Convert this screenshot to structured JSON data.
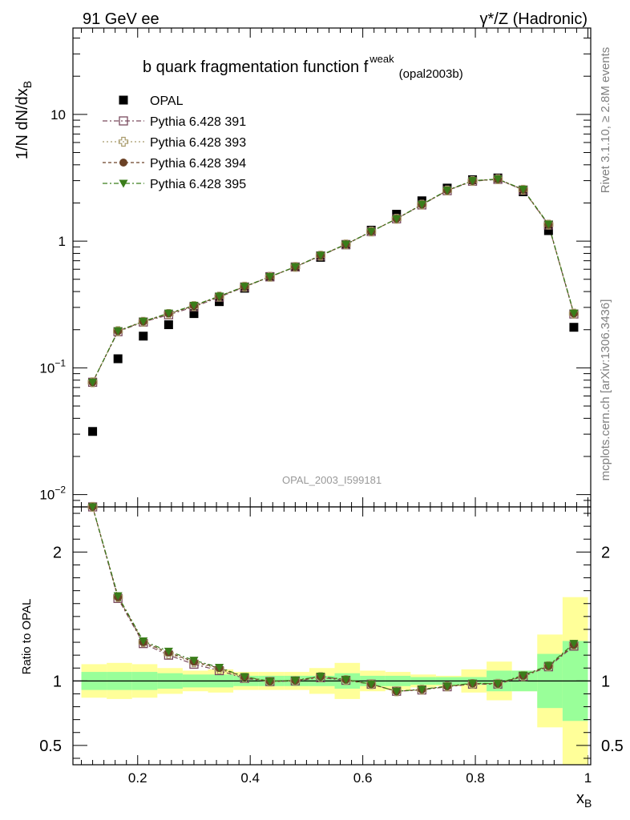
{
  "header": {
    "left": "91 GeV ee",
    "right": "γ*/Z (Hadronic)"
  },
  "side_labels": {
    "rivet": "Rivet 3.1.10, ≥ 2.8M events",
    "mcplots": "mcplots.cern.ch [arXiv:1306.3436]"
  },
  "chart_data": [
    {
      "type": "scatter",
      "title": "b quark fragmentation function f",
      "title_sup": "weak",
      "title_sub": "(opal2003b)",
      "ylabel": "1/N dN/dx",
      "ylabel_sub": "B",
      "watermark": "OPAL_2003_I599181",
      "yscale": "log",
      "xlim": [
        0.085,
        1.005
      ],
      "ylim": [
        0.008,
        48
      ],
      "yticks": [
        {
          "value": 0.01,
          "base": "10",
          "exp": "−2"
        },
        {
          "value": 0.1,
          "base": "10",
          "exp": "−1"
        },
        {
          "value": 1,
          "label": "1"
        },
        {
          "value": 10,
          "label": "10"
        }
      ],
      "x": [
        0.12,
        0.165,
        0.21,
        0.255,
        0.3,
        0.345,
        0.39,
        0.435,
        0.48,
        0.525,
        0.57,
        0.615,
        0.66,
        0.705,
        0.75,
        0.795,
        0.84,
        0.885,
        0.93,
        0.975
      ],
      "series": [
        {
          "name": "OPAL",
          "color": "#000000",
          "marker": "square-filled",
          "values": [
            0.0315,
            0.118,
            0.178,
            0.219,
            0.268,
            0.333,
            0.425,
            0.525,
            0.625,
            0.745,
            0.935,
            1.22,
            1.63,
            2.08,
            2.62,
            3.05,
            3.15,
            2.45,
            1.21,
            0.209
          ]
        },
        {
          "name": "Pythia 6.428 391",
          "color": "#7a4a5e",
          "marker": "square-open",
          "dash": "6,3,2,3",
          "values": [
            0.077,
            0.193,
            0.23,
            0.262,
            0.303,
            0.361,
            0.435,
            0.522,
            0.625,
            0.765,
            0.94,
            1.19,
            1.5,
            1.93,
            2.5,
            2.97,
            3.07,
            2.53,
            1.34,
            0.266
          ]
        },
        {
          "name": "Pythia 6.428 393",
          "color": "#a89a6a",
          "marker": "cross-open",
          "dash": "2,3",
          "values": [
            0.077,
            0.195,
            0.231,
            0.266,
            0.307,
            0.365,
            0.437,
            0.523,
            0.626,
            0.768,
            0.942,
            1.19,
            1.5,
            1.94,
            2.51,
            2.98,
            3.08,
            2.54,
            1.35,
            0.268
          ]
        },
        {
          "name": "Pythia 6.428 394",
          "color": "#6b4226",
          "marker": "circle-filled",
          "dash": "4,3",
          "values": [
            0.077,
            0.195,
            0.232,
            0.268,
            0.309,
            0.367,
            0.438,
            0.523,
            0.627,
            0.77,
            0.944,
            1.19,
            1.5,
            1.94,
            2.51,
            2.99,
            3.08,
            2.55,
            1.35,
            0.268
          ]
        },
        {
          "name": "Pythia 6.428 395",
          "color": "#3a7d1a",
          "marker": "triangle-down-filled",
          "dash": "6,3,2,3",
          "values": [
            0.077,
            0.196,
            0.233,
            0.27,
            0.311,
            0.368,
            0.439,
            0.524,
            0.628,
            0.772,
            0.945,
            1.19,
            1.5,
            1.95,
            2.52,
            3.0,
            3.09,
            2.56,
            1.36,
            0.27
          ]
        }
      ]
    },
    {
      "type": "line",
      "ylabel": "Ratio to OPAL",
      "xlabel": "x",
      "xlabel_sub": "B",
      "xlim": [
        0.085,
        1.005
      ],
      "ylim": [
        0.35,
        2.35
      ],
      "xticks": [
        0.2,
        0.4,
        0.6,
        0.8,
        1
      ],
      "xticklabels": [
        "0.2",
        "0.4",
        "0.6",
        "0.8",
        "1"
      ],
      "yticks": [
        0.5,
        1,
        2
      ],
      "yticklabels": [
        "0.5",
        "1",
        "2"
      ],
      "bin_edges": [
        0.1,
        0.145,
        0.19,
        0.235,
        0.28,
        0.325,
        0.37,
        0.415,
        0.46,
        0.505,
        0.55,
        0.595,
        0.64,
        0.685,
        0.73,
        0.775,
        0.82,
        0.865,
        0.91,
        0.955,
        1.0
      ],
      "band_stat_low": [
        0.93,
        0.93,
        0.93,
        0.94,
        0.95,
        0.95,
        0.96,
        0.96,
        0.96,
        0.96,
        0.94,
        0.96,
        0.96,
        0.97,
        0.97,
        0.97,
        0.92,
        0.92,
        0.79,
        0.69
      ],
      "band_stat_high": [
        1.07,
        1.07,
        1.07,
        1.06,
        1.05,
        1.05,
        1.04,
        1.04,
        1.04,
        1.04,
        1.06,
        1.04,
        1.04,
        1.03,
        1.03,
        1.03,
        1.08,
        1.08,
        1.21,
        1.31
      ],
      "band_total_low": [
        0.87,
        0.86,
        0.87,
        0.9,
        0.92,
        0.91,
        0.93,
        0.93,
        0.93,
        0.9,
        0.86,
        0.92,
        0.93,
        0.95,
        0.96,
        0.91,
        0.85,
        0.92,
        0.64,
        0.35
      ],
      "band_total_high": [
        1.13,
        1.14,
        1.13,
        1.1,
        1.08,
        1.09,
        1.07,
        1.07,
        1.07,
        1.1,
        1.14,
        1.08,
        1.07,
        1.05,
        1.04,
        1.09,
        1.15,
        1.08,
        1.36,
        1.65
      ],
      "band_colors": {
        "stat": "#99ff99",
        "total": "#ffff99"
      },
      "series": [
        {
          "name": "Pythia 6.428 391",
          "values": [
            2.44,
            1.64,
            1.29,
            1.2,
            1.13,
            1.08,
            1.02,
            0.995,
            1.0,
            1.025,
            1.005,
            0.975,
            0.92,
            0.93,
            0.955,
            0.975,
            0.975,
            1.035,
            1.11,
            1.27
          ]
        },
        {
          "name": "Pythia 6.428 393",
          "values": [
            2.44,
            1.65,
            1.3,
            1.21,
            1.145,
            1.09,
            1.025,
            0.995,
            1.0,
            1.03,
            1.007,
            0.975,
            0.92,
            0.932,
            0.958,
            0.977,
            0.978,
            1.037,
            1.115,
            1.28
          ]
        },
        {
          "name": "Pythia 6.428 394",
          "values": [
            2.44,
            1.65,
            1.3,
            1.22,
            1.15,
            1.1,
            1.03,
            0.996,
            1.003,
            1.034,
            1.01,
            0.975,
            0.92,
            0.933,
            0.958,
            0.98,
            0.978,
            1.04,
            1.115,
            1.28
          ]
        },
        {
          "name": "Pythia 6.428 395",
          "values": [
            2.44,
            1.66,
            1.31,
            1.23,
            1.16,
            1.105,
            1.033,
            0.998,
            1.005,
            1.036,
            1.011,
            0.976,
            0.92,
            0.935,
            0.96,
            0.982,
            0.98,
            1.045,
            1.12,
            1.29
          ]
        }
      ]
    }
  ]
}
